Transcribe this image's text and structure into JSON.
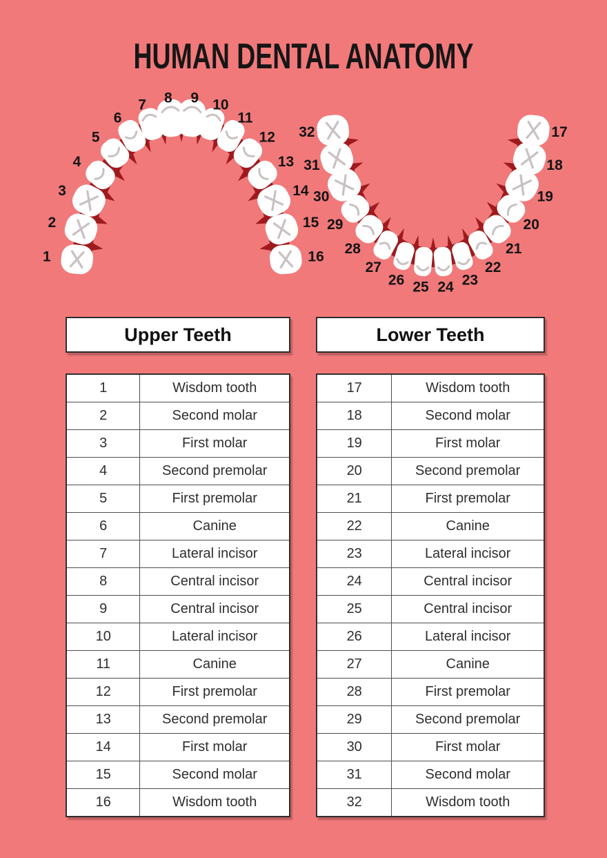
{
  "title": "HUMAN DENTAL ANATOMY",
  "colors": {
    "background": "#f1797a",
    "gum_red": "#9e1a1e",
    "tooth_white": "#ffffff",
    "tooth_detail": "#c9c1c1",
    "text_black": "#161616"
  },
  "diagram": {
    "upper_arch_numbers": [
      "1",
      "2",
      "3",
      "4",
      "5",
      "6",
      "7",
      "8",
      "9",
      "10",
      "11",
      "12",
      "13",
      "14",
      "15",
      "16"
    ],
    "lower_arch_numbers": [
      "17",
      "18",
      "19",
      "20",
      "21",
      "22",
      "23",
      "24",
      "25",
      "26",
      "27",
      "28",
      "29",
      "30",
      "31",
      "32"
    ]
  },
  "tables": [
    {
      "header": "Upper Teeth",
      "rows": [
        {
          "num": "1",
          "name": "Wisdom tooth"
        },
        {
          "num": "2",
          "name": "Second molar"
        },
        {
          "num": "3",
          "name": "First molar"
        },
        {
          "num": "4",
          "name": "Second premolar"
        },
        {
          "num": "5",
          "name": "First premolar"
        },
        {
          "num": "6",
          "name": "Canine"
        },
        {
          "num": "7",
          "name": "Lateral incisor"
        },
        {
          "num": "8",
          "name": "Central incisor"
        },
        {
          "num": "9",
          "name": "Central incisor"
        },
        {
          "num": "10",
          "name": "Lateral incisor"
        },
        {
          "num": "11",
          "name": "Canine"
        },
        {
          "num": "12",
          "name": "First premolar"
        },
        {
          "num": "13",
          "name": "Second premolar"
        },
        {
          "num": "14",
          "name": "First molar"
        },
        {
          "num": "15",
          "name": "Second molar"
        },
        {
          "num": "16",
          "name": "Wisdom tooth"
        }
      ]
    },
    {
      "header": "Lower Teeth",
      "rows": [
        {
          "num": "17",
          "name": "Wisdom tooth"
        },
        {
          "num": "18",
          "name": "Second molar"
        },
        {
          "num": "19",
          "name": "First molar"
        },
        {
          "num": "20",
          "name": "Second premolar"
        },
        {
          "num": "21",
          "name": "First premolar"
        },
        {
          "num": "22",
          "name": "Canine"
        },
        {
          "num": "23",
          "name": "Lateral incisor"
        },
        {
          "num": "24",
          "name": "Central incisor"
        },
        {
          "num": "25",
          "name": "Central incisor"
        },
        {
          "num": "26",
          "name": "Lateral incisor"
        },
        {
          "num": "27",
          "name": "Canine"
        },
        {
          "num": "28",
          "name": "First premolar"
        },
        {
          "num": "29",
          "name": "Second premolar"
        },
        {
          "num": "30",
          "name": "First molar"
        },
        {
          "num": "31",
          "name": "Second molar"
        },
        {
          "num": "32",
          "name": "Wisdom tooth"
        }
      ]
    }
  ]
}
